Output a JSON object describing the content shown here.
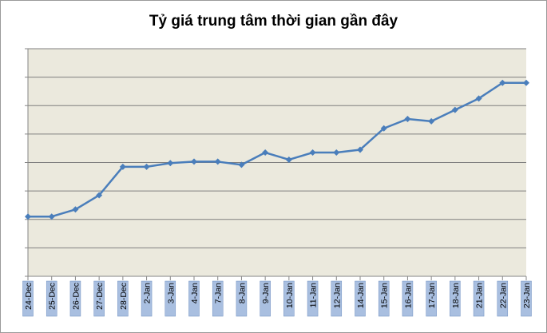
{
  "chart_data": {
    "type": "line",
    "title": "Tỷ giá trung tâm thời gian gần đây",
    "xlabel": "",
    "ylabel": "",
    "categories": [
      "24-Dec",
      "25-Dec",
      "26-Dec",
      "27-Dec",
      "28-Dec",
      "2-Jan",
      "3-Jan",
      "4-Jan",
      "7-Jan",
      "8-Jan",
      "9-Jan",
      "10-Jan",
      "11-Jan",
      "12-Jan",
      "14-Jan",
      "15-Jan",
      "16-Jan",
      "17-Jan",
      "18-Jan",
      "21-Jan",
      "22-Jan",
      "23-Jan"
    ],
    "series": [
      {
        "values": [
          2.1,
          2.1,
          2.35,
          2.85,
          3.85,
          3.85,
          3.98,
          4.03,
          4.03,
          3.92,
          4.35,
          4.1,
          4.35,
          4.35,
          4.45,
          5.2,
          5.53,
          5.45,
          5.85,
          6.25,
          6.8,
          6.8
        ]
      }
    ],
    "ylim": [
      0,
      8
    ],
    "grid": true,
    "yticks_labeled": false,
    "legend": "none",
    "colors": {
      "line": "#4a7ebb",
      "plot_background": "#ebe9dd",
      "gridline": "#7f7f7f",
      "tick_label_background": "#a9bfe0"
    }
  }
}
